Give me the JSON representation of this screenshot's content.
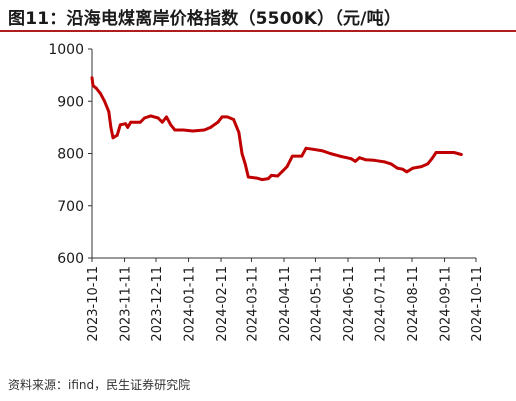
{
  "title": "图11：沿海电煤离岸价格指数（5500K）（元/吨）",
  "source": "资料来源：ifind，民生证券研究院",
  "colors": {
    "line": "#c00000",
    "accent": "#b01d1d",
    "axis": "#333333"
  },
  "chart_data": {
    "type": "line",
    "title": "图11：沿海电煤离岸价格指数（5500K）（元/吨）",
    "xlabel": "",
    "ylabel": "",
    "ylim": [
      600,
      1000
    ],
    "yticks": [
      600,
      700,
      800,
      900,
      1000
    ],
    "xlim": [
      "2023-10-11",
      "2024-10-11"
    ],
    "xticks": [
      "2023-10-11",
      "2023-11-11",
      "2023-12-11",
      "2024-01-11",
      "2024-02-11",
      "2024-03-11",
      "2024-04-11",
      "2024-05-11",
      "2024-06-11",
      "2024-07-11",
      "2024-08-11",
      "2024-09-11",
      "2024-10-11"
    ],
    "grid": false,
    "legend": "none",
    "series": [
      {
        "values": [
          [
            "2023-10-11",
            945
          ],
          [
            "2023-10-12",
            930
          ],
          [
            "2023-10-15",
            925
          ],
          [
            "2023-10-19",
            915
          ],
          [
            "2023-10-23",
            900
          ],
          [
            "2023-10-27",
            880
          ],
          [
            "2023-10-29",
            850
          ],
          [
            "2023-10-31",
            830
          ],
          [
            "2023-11-04",
            835
          ],
          [
            "2023-11-07",
            855
          ],
          [
            "2023-11-12",
            857
          ],
          [
            "2023-11-14",
            850
          ],
          [
            "2023-11-17",
            860
          ],
          [
            "2023-11-26",
            860
          ],
          [
            "2023-11-30",
            868
          ],
          [
            "2023-12-06",
            872
          ],
          [
            "2023-12-13",
            868
          ],
          [
            "2023-12-17",
            860
          ],
          [
            "2023-12-21",
            870
          ],
          [
            "2023-12-25",
            855
          ],
          [
            "2023-12-29",
            845
          ],
          [
            "2024-01-06",
            845
          ],
          [
            "2024-01-15",
            843
          ],
          [
            "2024-01-26",
            845
          ],
          [
            "2024-02-01",
            850
          ],
          [
            "2024-02-08",
            860
          ],
          [
            "2024-02-12",
            870
          ],
          [
            "2024-02-17",
            870
          ],
          [
            "2024-02-23",
            865
          ],
          [
            "2024-02-28",
            840
          ],
          [
            "2024-03-02",
            800
          ],
          [
            "2024-03-05",
            780
          ],
          [
            "2024-03-08",
            755
          ],
          [
            "2024-03-16",
            753
          ],
          [
            "2024-03-21",
            750
          ],
          [
            "2024-03-27",
            752
          ],
          [
            "2024-03-30",
            758
          ],
          [
            "2024-04-05",
            757
          ],
          [
            "2024-04-09",
            765
          ],
          [
            "2024-04-14",
            775
          ],
          [
            "2024-04-19",
            795
          ],
          [
            "2024-04-28",
            795
          ],
          [
            "2024-05-02",
            810
          ],
          [
            "2024-05-09",
            808
          ],
          [
            "2024-05-18",
            805
          ],
          [
            "2024-05-25",
            800
          ],
          [
            "2024-06-03",
            795
          ],
          [
            "2024-06-14",
            790
          ],
          [
            "2024-06-18",
            785
          ],
          [
            "2024-06-22",
            792
          ],
          [
            "2024-06-28",
            788
          ],
          [
            "2024-07-06",
            787
          ],
          [
            "2024-07-16",
            784
          ],
          [
            "2024-07-22",
            780
          ],
          [
            "2024-07-28",
            772
          ],
          [
            "2024-08-02",
            770
          ],
          [
            "2024-08-06",
            765
          ],
          [
            "2024-08-12",
            772
          ],
          [
            "2024-08-20",
            775
          ],
          [
            "2024-08-26",
            780
          ],
          [
            "2024-08-30",
            790
          ],
          [
            "2024-09-03",
            802
          ],
          [
            "2024-09-13",
            802
          ],
          [
            "2024-09-20",
            802
          ],
          [
            "2024-09-27",
            798
          ]
        ]
      }
    ]
  }
}
